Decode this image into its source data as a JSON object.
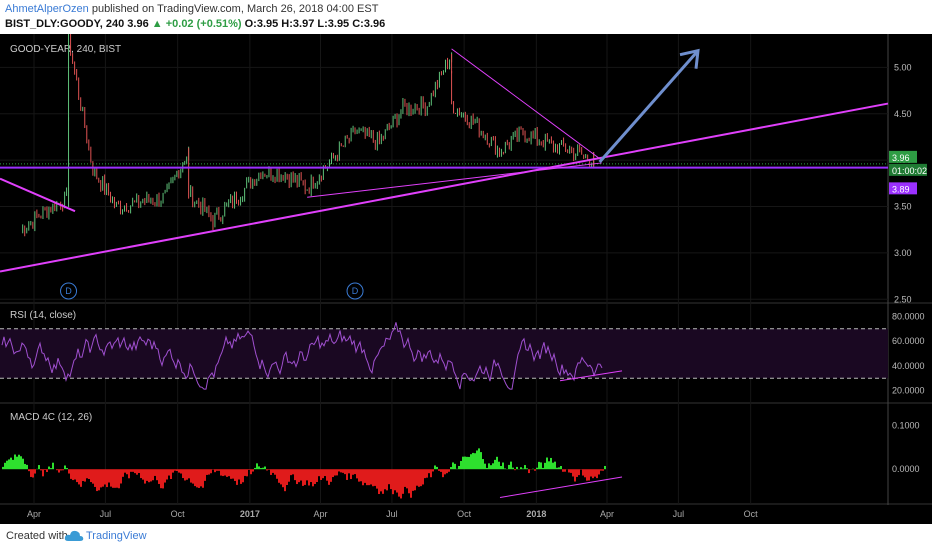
{
  "header": {
    "author": "AhmetAlperOzen",
    "published_text": "published on TradingView.com, March 26, 2018 04:00 EST",
    "symbol": "BIST_DLY:GOODY, 240",
    "last": "3.96",
    "change": "+0.02 (+0.51%)",
    "ohlc": "O:3.95 H:3.97 L:3.95 C:3.96"
  },
  "footer": {
    "created_with": "Created with",
    "brand": "TradingView"
  },
  "chart_data": [
    {
      "type": "line",
      "title": "GOOD-YEAR, 240, BIST",
      "y_ticks": [
        "5.00",
        "4.50",
        "4.00",
        "3.50",
        "3.00",
        "2.50"
      ],
      "ylim": [
        2.46,
        5.36
      ],
      "x_ticks": [
        "Apr",
        "Jul",
        "Oct",
        "2017",
        "Apr",
        "Jul",
        "Oct",
        "2018",
        "Apr",
        "Jul",
        "Oct"
      ],
      "series": [
        {
          "x": [
            "2016-03",
            "2016-04",
            "2016-05",
            "2016-05",
            "2016-06",
            "2016-07",
            "2016-08",
            "2016-09",
            "2016-10",
            "2016-10",
            "2016-11",
            "2016-12",
            "2017-01",
            "2017-02",
            "2017-03",
            "2017-04",
            "2017-05",
            "2017-06",
            "2017-07",
            "2017-08",
            "2017-09",
            "2017-09",
            "2017-10",
            "2017-11",
            "2017-12",
            "2018-01",
            "2018-02",
            "2018-03",
            "2018-03"
          ],
          "values": [
            3.25,
            3.45,
            3.6,
            5.3,
            3.9,
            3.5,
            3.55,
            3.6,
            4.1,
            3.65,
            3.35,
            3.6,
            3.88,
            3.85,
            3.7,
            4.0,
            4.3,
            4.2,
            4.55,
            4.6,
            5.15,
            4.6,
            4.4,
            4.1,
            4.3,
            4.18,
            4.1,
            4.0,
            3.96
          ]
        }
      ],
      "price_labels": [
        "3.96",
        "01:00:02",
        "3.89"
      ],
      "markers": [
        "D",
        "D"
      ]
    },
    {
      "type": "line",
      "title": "RSI (14, close)",
      "y_ticks": [
        "80.0000",
        "60.0000",
        "40.0000",
        "20.0000"
      ],
      "ylim": [
        10,
        90
      ],
      "bands": [
        70,
        30
      ]
    },
    {
      "type": "bar",
      "title": "MACD 4C (12, 26)",
      "y_ticks": [
        "0.1000",
        "0.0000"
      ],
      "ylim": [
        -0.08,
        0.15
      ]
    }
  ],
  "colors": {
    "background": "#000000",
    "trendline": "#e040fb",
    "support": "#9b30ff",
    "arrow": "#6f8fce",
    "up_bar": "#2ee02e",
    "down_bar": "#e01b1b",
    "rsi": "#a050d0",
    "last_price": "#2e9d44",
    "label_purple": "#9b30ff"
  }
}
